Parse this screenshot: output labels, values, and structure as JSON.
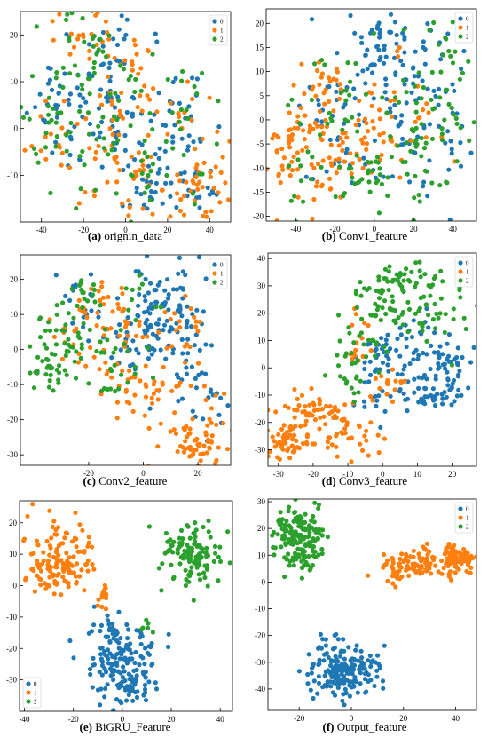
{
  "colors": {
    "0": "#1f77b4",
    "1": "#ff7f0e",
    "2": "#2ca02c"
  },
  "legend_labels": [
    "0",
    "1",
    "2"
  ],
  "chart_data": [
    {
      "type": "scatter",
      "caption_letter": "(a)",
      "caption_rest": " orignin_data",
      "xlim": [
        -50,
        50
      ],
      "ylim": [
        -20,
        25
      ],
      "xticks": [
        -40,
        -20,
        0,
        20,
        40
      ],
      "yticks": [
        -10,
        0,
        10,
        20
      ],
      "legend_position": "top-right",
      "series": [
        {
          "name": "0",
          "clusters": [
            [
              -30,
              3,
              9,
              5,
              35
            ],
            [
              -12,
              8,
              10,
              8,
              40
            ],
            [
              5,
              2,
              12,
              8,
              35
            ],
            [
              28,
              2,
              8,
              6,
              25
            ],
            [
              18,
              -12,
              16,
              4,
              28
            ],
            [
              -8,
              18,
              6,
              4,
              14
            ],
            [
              38,
              -14,
              5,
              3,
              10
            ]
          ]
        },
        {
          "name": "1",
          "clusters": [
            [
              -18,
              20,
              7,
              3,
              20
            ],
            [
              0,
              12,
              7,
              5,
              22
            ],
            [
              10,
              -12,
              14,
              4,
              30
            ],
            [
              -10,
              -4,
              12,
              6,
              25
            ],
            [
              38,
              -12,
              7,
              5,
              38
            ],
            [
              -35,
              -2,
              7,
              4,
              15
            ],
            [
              20,
              5,
              10,
              6,
              20
            ]
          ]
        },
        {
          "name": "2",
          "clusters": [
            [
              -35,
              1,
              9,
              5,
              30
            ],
            [
              -20,
              10,
              10,
              8,
              30
            ],
            [
              -5,
              0,
              12,
              8,
              25
            ],
            [
              15,
              -8,
              12,
              6,
              25
            ],
            [
              -15,
              18,
              5,
              4,
              12
            ],
            [
              28,
              5,
              8,
              5,
              15
            ]
          ]
        }
      ]
    },
    {
      "type": "scatter",
      "caption_letter": "(b)",
      "caption_rest": " Conv1_feature",
      "xlim": [
        -55,
        52
      ],
      "ylim": [
        -21,
        23
      ],
      "xticks": [
        -40,
        -20,
        0,
        20,
        40
      ],
      "yticks": [
        -20,
        -15,
        -10,
        -5,
        0,
        5,
        10,
        15,
        20
      ],
      "legend_position": "top-right",
      "series": [
        {
          "name": "0",
          "clusters": [
            [
              0,
              15,
              8,
              4,
              35
            ],
            [
              10,
              5,
              15,
              6,
              40
            ],
            [
              -10,
              -2,
              10,
              8,
              30
            ],
            [
              25,
              -5,
              10,
              8,
              35
            ],
            [
              -30,
              3,
              8,
              4,
              15
            ],
            [
              20,
              12,
              10,
              3,
              20
            ]
          ]
        },
        {
          "name": "1",
          "clusters": [
            [
              -42,
              -5,
              6,
              5,
              45
            ],
            [
              -25,
              8,
              7,
              3,
              20
            ],
            [
              -20,
              -8,
              8,
              5,
              35
            ],
            [
              0,
              -2,
              8,
              4,
              25
            ],
            [
              15,
              2,
              12,
              8,
              30
            ],
            [
              -30,
              -2,
              6,
              4,
              20
            ]
          ]
        },
        {
          "name": "2",
          "clusters": [
            [
              30,
              0,
              12,
              8,
              50
            ],
            [
              -5,
              -13,
              6,
              4,
              25
            ],
            [
              -20,
              0,
              12,
              8,
              30
            ],
            [
              35,
              15,
              6,
              4,
              15
            ],
            [
              -35,
              -10,
              6,
              4,
              12
            ],
            [
              20,
              -8,
              8,
              5,
              20
            ]
          ]
        }
      ]
    },
    {
      "type": "scatter",
      "caption_letter": "(c)",
      "caption_rest": " Conv2_feature",
      "xlim": [
        -45,
        32
      ],
      "ylim": [
        -33,
        27
      ],
      "xticks": [
        -20,
        0,
        20
      ],
      "yticks": [
        -30,
        -20,
        -10,
        0,
        10,
        20
      ],
      "legend_position": "top-right",
      "series": [
        {
          "name": "0",
          "clusters": [
            [
              8,
              15,
              6,
              6,
              55
            ],
            [
              18,
              -3,
              4,
              8,
              35
            ],
            [
              -5,
              2,
              6,
              6,
              30
            ],
            [
              5,
              5,
              8,
              10,
              30
            ],
            [
              -22,
              12,
              5,
              6,
              20
            ],
            [
              25,
              -18,
              3,
              5,
              10
            ]
          ]
        },
        {
          "name": "1",
          "clusters": [
            [
              -15,
              10,
              9,
              5,
              40
            ],
            [
              5,
              -12,
              10,
              4,
              40
            ],
            [
              20,
              -27,
              6,
              4,
              60
            ],
            [
              -8,
              -3,
              6,
              6,
              20
            ],
            [
              15,
              5,
              5,
              5,
              20
            ],
            [
              -25,
              2,
              4,
              4,
              10
            ]
          ]
        },
        {
          "name": "2",
          "clusters": [
            [
              -35,
              -5,
              6,
              4,
              35
            ],
            [
              -28,
              5,
              5,
              7,
              35
            ],
            [
              -10,
              -8,
              6,
              5,
              25
            ],
            [
              -20,
              15,
              5,
              4,
              15
            ],
            [
              -2,
              15,
              4,
              4,
              10
            ]
          ]
        }
      ]
    },
    {
      "type": "scatter",
      "caption_letter": "(d)",
      "caption_rest": " Conv3_feature",
      "xlim": [
        -33,
        27
      ],
      "ylim": [
        -36,
        42
      ],
      "xticks": [
        -30,
        -20,
        -10,
        0,
        10,
        20
      ],
      "yticks": [
        -30,
        -20,
        -10,
        0,
        10,
        20,
        30,
        40
      ],
      "legend_position": "top-right",
      "series": [
        {
          "name": "0",
          "clusters": [
            [
              14,
              -10,
              5,
              3,
              40
            ],
            [
              18,
              2,
              4,
              6,
              45
            ],
            [
              5,
              3,
              5,
              6,
              25
            ],
            [
              -3,
              -5,
              3,
              8,
              25
            ],
            [
              8,
              12,
              5,
              4,
              15
            ],
            [
              -1,
              8,
              2,
              3,
              10
            ]
          ]
        },
        {
          "name": "1",
          "clusters": [
            [
              -27,
              -27,
              3,
              4,
              45
            ],
            [
              -20,
              -15,
              5,
              4,
              40
            ],
            [
              -8,
              -22,
              4,
              6,
              30
            ],
            [
              -15,
              -20,
              4,
              6,
              25
            ],
            [
              2,
              -5,
              3,
              4,
              15
            ],
            [
              -7,
              10,
              2,
              5,
              15
            ]
          ]
        },
        {
          "name": "2",
          "clusters": [
            [
              5,
              22,
              8,
              4,
              45
            ],
            [
              8,
              33,
              5,
              3,
              35
            ],
            [
              -5,
              8,
              5,
              5,
              25
            ],
            [
              -8,
              -2,
              3,
              4,
              15
            ],
            [
              15,
              18,
              6,
              6,
              20
            ],
            [
              -2,
              28,
              4,
              4,
              15
            ]
          ]
        }
      ]
    },
    {
      "type": "scatter",
      "caption_letter": "(e)",
      "caption_rest": " BiGRU_Feature",
      "xlim": [
        -42,
        45
      ],
      "ylim": [
        -40,
        27
      ],
      "xticks": [
        -40,
        -20,
        0,
        20,
        40
      ],
      "yticks": [
        -30,
        -20,
        -10,
        0,
        10,
        20
      ],
      "legend_position": "bottom-left",
      "series": [
        {
          "name": "0",
          "clusters": [
            [
              0,
              -25,
              8,
              6,
              140
            ],
            [
              -5,
              -15,
              3,
              3,
              20
            ],
            [
              5,
              -32,
              5,
              3,
              30
            ]
          ]
        },
        {
          "name": "1",
          "clusters": [
            [
              -25,
              8,
              7,
              6,
              120
            ],
            [
              -8,
              -3,
              2,
              2,
              15
            ],
            [
              -33,
              5,
              3,
              3,
              15
            ]
          ]
        },
        {
          "name": "2",
          "clusters": [
            [
              28,
              10,
              6,
              5,
              120
            ],
            [
              10,
              -13,
              2,
              1,
              6
            ]
          ]
        }
      ]
    },
    {
      "type": "scatter",
      "caption_letter": "(f)",
      "caption_rest": " Output_feature",
      "xlim": [
        -32,
        48
      ],
      "ylim": [
        -48,
        31
      ],
      "xticks": [
        -20,
        0,
        20,
        40
      ],
      "yticks": [
        -40,
        -30,
        -20,
        -10,
        0,
        10,
        20,
        30
      ],
      "legend_position": "top-right",
      "series": [
        {
          "name": "0",
          "clusters": [
            [
              -5,
              -34,
              6,
              5,
              150
            ],
            [
              5,
              -31,
              3,
              3,
              25
            ],
            [
              -8,
              -24,
              2,
              2,
              10
            ]
          ]
        },
        {
          "name": "1",
          "clusters": [
            [
              28,
              7,
              8,
              2.5,
              90
            ],
            [
              40,
              9,
              3,
              3,
              60
            ],
            [
              17,
              4,
              2,
              3,
              20
            ]
          ]
        },
        {
          "name": "2",
          "clusters": [
            [
              -20,
              17,
              5,
              5,
              150
            ],
            [
              -18,
              8,
              3,
              2,
              20
            ]
          ]
        }
      ]
    }
  ]
}
